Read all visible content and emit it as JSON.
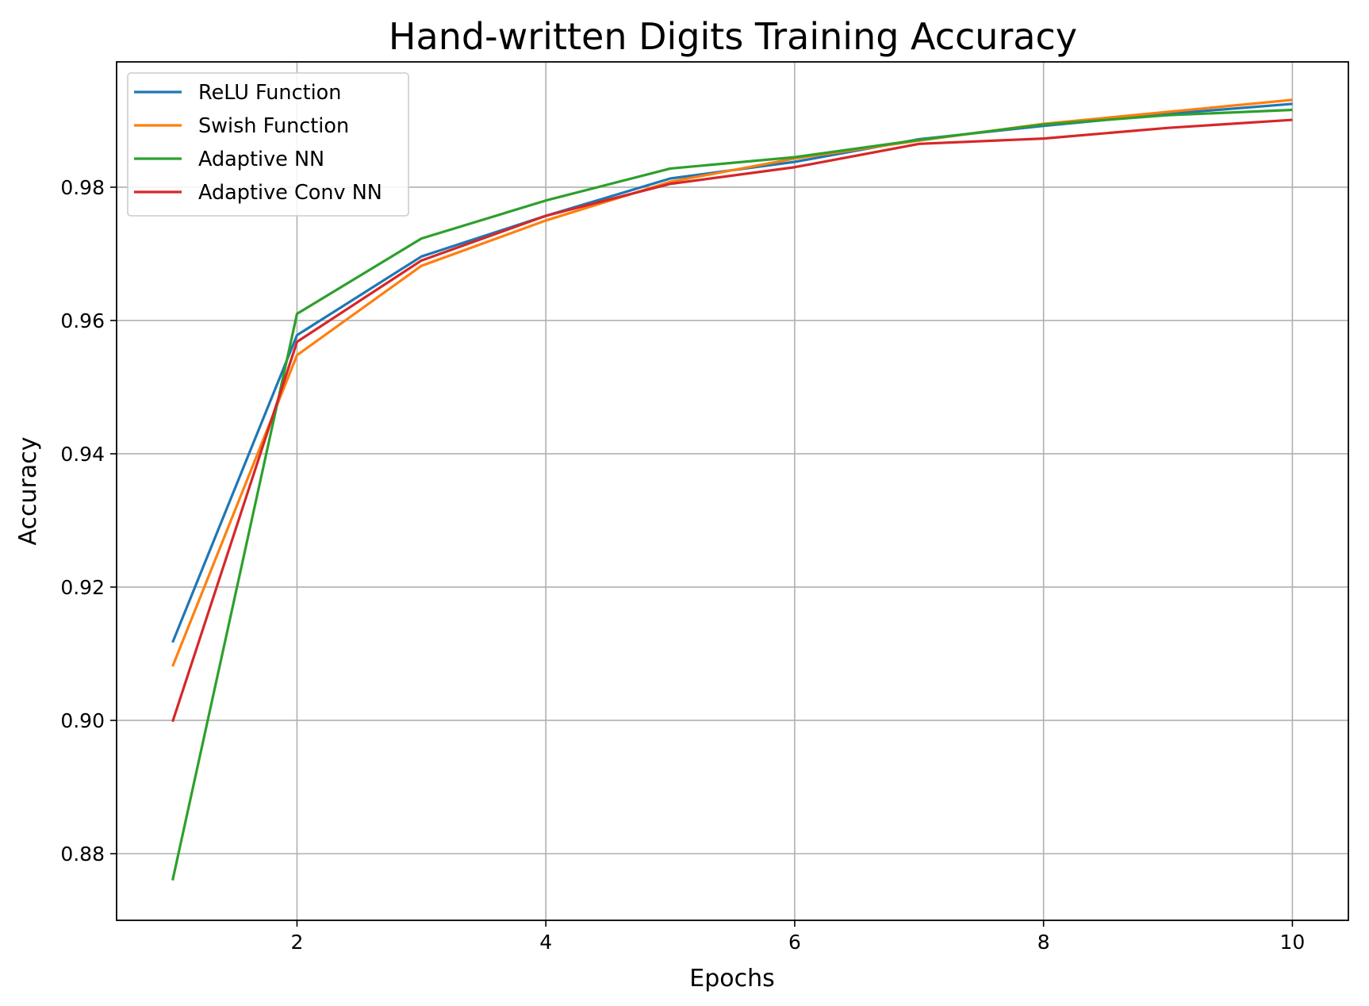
{
  "chart_data": {
    "type": "line",
    "title": "Hand-written Digits Training Accuracy",
    "xlabel": "Epochs",
    "ylabel": "Accuracy",
    "x": [
      1,
      2,
      3,
      4,
      5,
      6,
      7,
      8,
      9,
      10
    ],
    "xlim": [
      0.55,
      10.45
    ],
    "ylim": [
      0.87,
      0.9988
    ],
    "xticks": [
      2,
      4,
      6,
      8,
      10
    ],
    "xtick_labels": [
      "2",
      "4",
      "6",
      "8",
      "10"
    ],
    "yticks": [
      0.88,
      0.9,
      0.92,
      0.94,
      0.96,
      0.98
    ],
    "ytick_labels": [
      "0.88",
      "0.90",
      "0.92",
      "0.94",
      "0.96",
      "0.98"
    ],
    "grid": true,
    "legend_position": "upper-left",
    "series": [
      {
        "name": "ReLU Function",
        "color": "#1f77b4",
        "values": [
          0.9117,
          0.9578,
          0.9696,
          0.9757,
          0.9813,
          0.9838,
          0.9872,
          0.9892,
          0.991,
          0.9925
        ]
      },
      {
        "name": "Swish Function",
        "color": "#ff7f0e",
        "values": [
          0.9081,
          0.9548,
          0.9682,
          0.975,
          0.9808,
          0.9843,
          0.987,
          0.9895,
          0.9913,
          0.9931
        ]
      },
      {
        "name": "Adaptive NN",
        "color": "#2ca02c",
        "values": [
          0.876,
          0.961,
          0.9723,
          0.978,
          0.9828,
          0.9845,
          0.9871,
          0.9894,
          0.9908,
          0.9916
        ]
      },
      {
        "name": "Adaptive Conv NN",
        "color": "#d62728",
        "values": [
          0.8998,
          0.9568,
          0.969,
          0.9757,
          0.9805,
          0.983,
          0.9865,
          0.9873,
          0.9889,
          0.9901
        ]
      }
    ]
  }
}
